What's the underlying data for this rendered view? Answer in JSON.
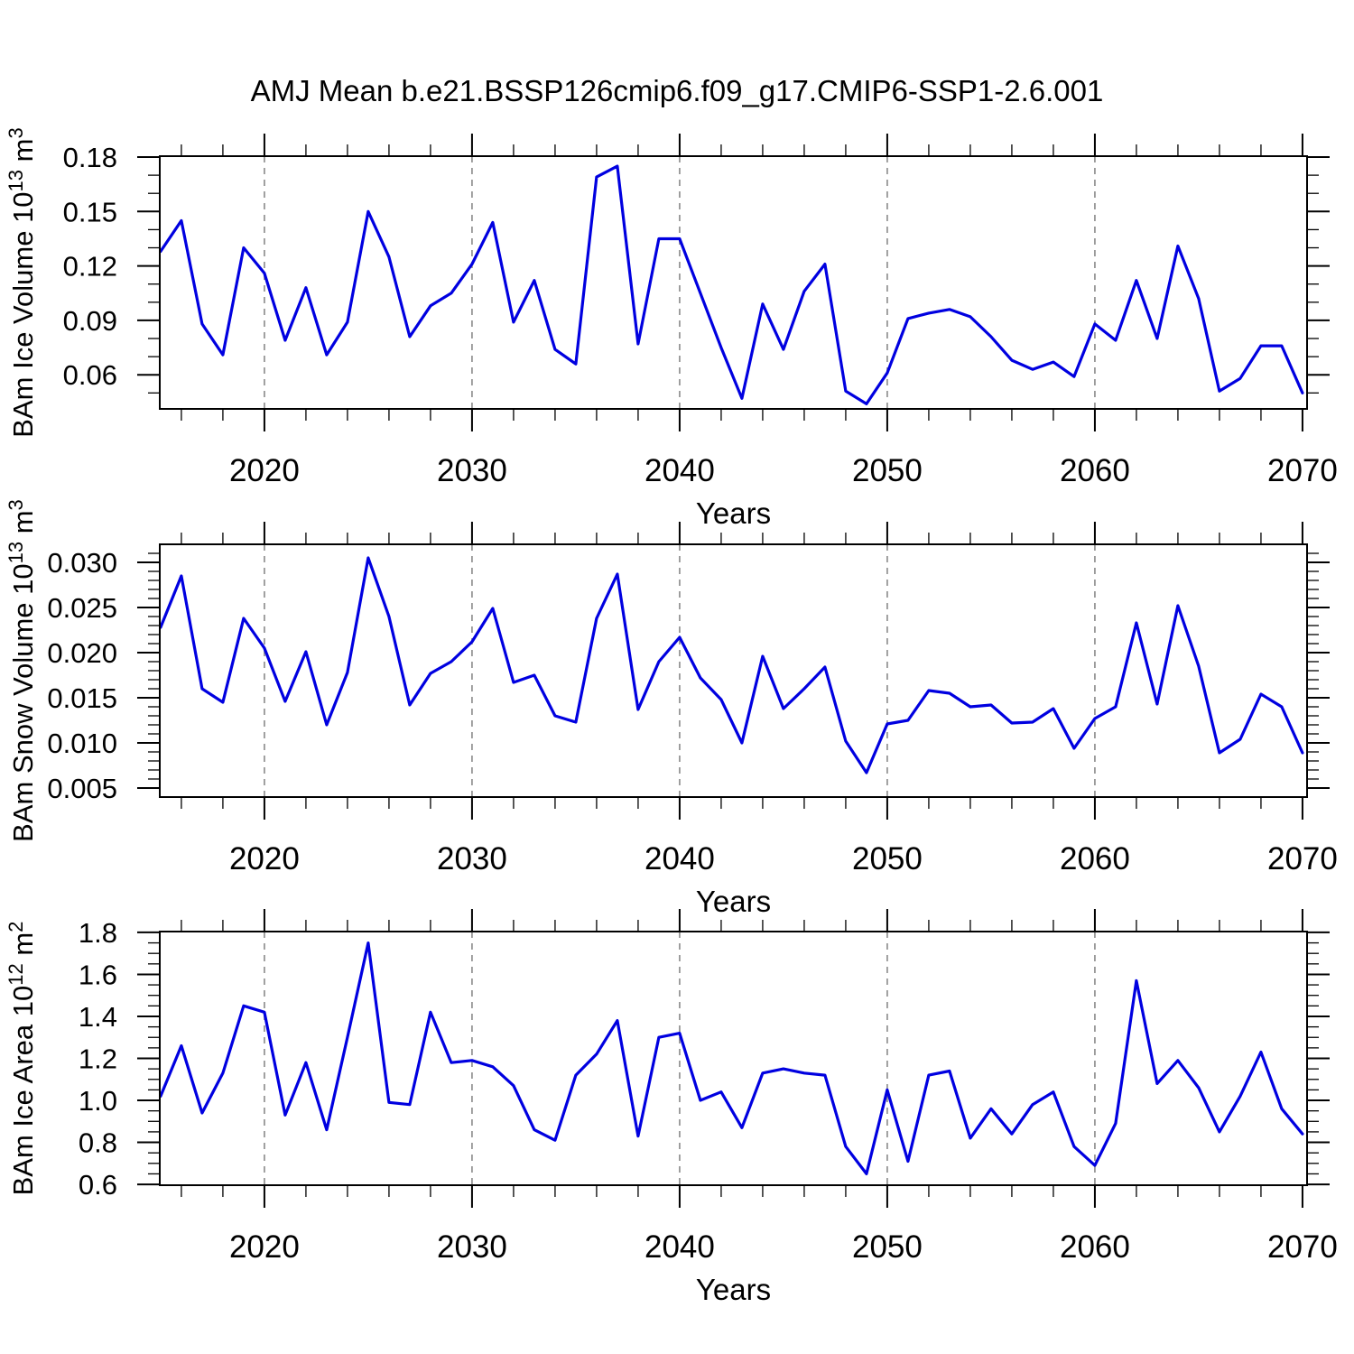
{
  "title": "AMJ Mean b.e21.BSSP126cmip6.f09_g17.CMIP6-SSP1-2.6.001",
  "colors": {
    "line": "#0000e0",
    "gridline": "#8a8a8a",
    "axis": "#000000",
    "background": "#ffffff"
  },
  "x_axis": {
    "label": "Years",
    "range": [
      2014.96,
      2070.22
    ],
    "major_ticks": [
      2020,
      2030,
      2040,
      2050,
      2060,
      2070
    ],
    "minor_step": 2,
    "gridlines": [
      2020,
      2030,
      2040,
      2050,
      2060
    ]
  },
  "chart_data": [
    {
      "type": "line",
      "name": "BAm Ice Volume",
      "ylabel": "BAm Ice Volume 10^13 m^3",
      "ylabel_parts": [
        {
          "text": "BAm Ice Volume 10",
          "super": false
        },
        {
          "text": "13",
          "super": true
        },
        {
          "text": " m",
          "super": false
        },
        {
          "text": "3",
          "super": true
        }
      ],
      "xlabel": "Years",
      "ylim": [
        0.0412,
        0.1805
      ],
      "yticks": [
        0.06,
        0.09,
        0.12,
        0.15,
        0.18
      ],
      "ytick_labels": [
        "0.06",
        "0.09",
        "0.12",
        "0.15",
        "0.18"
      ],
      "y_minor_step": 0.01,
      "grid": true,
      "legend": "none",
      "x": [
        2015,
        2016,
        2017,
        2018,
        2019,
        2020,
        2021,
        2022,
        2023,
        2024,
        2025,
        2026,
        2027,
        2028,
        2029,
        2030,
        2031,
        2032,
        2033,
        2034,
        2035,
        2036,
        2037,
        2038,
        2039,
        2040,
        2041,
        2042,
        2043,
        2044,
        2045,
        2046,
        2047,
        2048,
        2049,
        2050,
        2051,
        2052,
        2053,
        2054,
        2055,
        2056,
        2057,
        2058,
        2059,
        2060,
        2061,
        2062,
        2063,
        2064,
        2065,
        2066,
        2067,
        2068,
        2069,
        2070
      ],
      "values": [
        0.128,
        0.145,
        0.088,
        0.071,
        0.13,
        0.116,
        0.079,
        0.108,
        0.071,
        0.089,
        0.15,
        0.125,
        0.081,
        0.098,
        0.105,
        0.121,
        0.144,
        0.089,
        0.112,
        0.074,
        0.066,
        0.169,
        0.175,
        0.077,
        0.135,
        0.135,
        0.105,
        0.075,
        0.047,
        0.099,
        0.074,
        0.106,
        0.121,
        0.051,
        0.044,
        0.061,
        0.091,
        0.094,
        0.096,
        0.092,
        0.081,
        0.068,
        0.063,
        0.067,
        0.059,
        0.088,
        0.079,
        0.112,
        0.08,
        0.131,
        0.102,
        0.051,
        0.058,
        0.076,
        0.076,
        0.05
      ]
    },
    {
      "type": "line",
      "name": "BAm Snow Volume",
      "ylabel": "BAm Snow Volume 10^13 m^3",
      "ylabel_parts": [
        {
          "text": "BAm Snow Volume 10",
          "super": false
        },
        {
          "text": "13",
          "super": true
        },
        {
          "text": " m",
          "super": false
        },
        {
          "text": "3",
          "super": true
        }
      ],
      "xlabel": "Years",
      "ylim": [
        0.004,
        0.032
      ],
      "yticks": [
        0.005,
        0.01,
        0.015,
        0.02,
        0.025,
        0.03
      ],
      "ytick_labels": [
        "0.005",
        "0.010",
        "0.015",
        "0.020",
        "0.025",
        "0.030"
      ],
      "y_minor_step": 0.001,
      "grid": true,
      "legend": "none",
      "x": [
        2015,
        2016,
        2017,
        2018,
        2019,
        2020,
        2021,
        2022,
        2023,
        2024,
        2025,
        2026,
        2027,
        2028,
        2029,
        2030,
        2031,
        2032,
        2033,
        2034,
        2035,
        2036,
        2037,
        2038,
        2039,
        2040,
        2041,
        2042,
        2043,
        2044,
        2045,
        2046,
        2047,
        2048,
        2049,
        2050,
        2051,
        2052,
        2053,
        2054,
        2055,
        2056,
        2057,
        2058,
        2059,
        2060,
        2061,
        2062,
        2063,
        2064,
        2065,
        2066,
        2067,
        2068,
        2069,
        2070
      ],
      "values": [
        0.0228,
        0.0285,
        0.016,
        0.0145,
        0.0238,
        0.0205,
        0.0146,
        0.0201,
        0.012,
        0.0178,
        0.0305,
        0.024,
        0.0142,
        0.0177,
        0.019,
        0.0212,
        0.0249,
        0.0167,
        0.0175,
        0.013,
        0.0123,
        0.0238,
        0.0287,
        0.0137,
        0.019,
        0.0217,
        0.0172,
        0.0148,
        0.01,
        0.0196,
        0.0138,
        0.016,
        0.0184,
        0.0102,
        0.0067,
        0.0121,
        0.0125,
        0.0158,
        0.0155,
        0.014,
        0.0142,
        0.0122,
        0.0123,
        0.0138,
        0.0094,
        0.0127,
        0.014,
        0.0233,
        0.0143,
        0.0252,
        0.0185,
        0.0089,
        0.0104,
        0.0154,
        0.014,
        0.0089
      ]
    },
    {
      "type": "line",
      "name": "BAm Ice Area",
      "ylabel": "BAm Ice Area 10^12 m^2",
      "ylabel_parts": [
        {
          "text": "BAm Ice Area 10",
          "super": false
        },
        {
          "text": "12",
          "super": true
        },
        {
          "text": " m",
          "super": false
        },
        {
          "text": "2",
          "super": true
        }
      ],
      "xlabel": "Years",
      "ylim": [
        0.596,
        1.804
      ],
      "yticks": [
        0.6,
        0.8,
        1.0,
        1.2,
        1.4,
        1.6,
        1.8
      ],
      "ytick_labels": [
        "0.6",
        "0.8",
        "1.0",
        "1.2",
        "1.4",
        "1.6",
        "1.8"
      ],
      "y_minor_step": 0.05,
      "grid": true,
      "legend": "none",
      "x": [
        2015,
        2016,
        2017,
        2018,
        2019,
        2020,
        2021,
        2022,
        2023,
        2024,
        2025,
        2026,
        2027,
        2028,
        2029,
        2030,
        2031,
        2032,
        2033,
        2034,
        2035,
        2036,
        2037,
        2038,
        2039,
        2040,
        2041,
        2042,
        2043,
        2044,
        2045,
        2046,
        2047,
        2048,
        2049,
        2050,
        2051,
        2052,
        2053,
        2054,
        2055,
        2056,
        2057,
        2058,
        2059,
        2060,
        2061,
        2062,
        2063,
        2064,
        2065,
        2066,
        2067,
        2068,
        2069,
        2070
      ],
      "values": [
        1.02,
        1.26,
        0.94,
        1.13,
        1.45,
        1.42,
        0.93,
        1.18,
        0.86,
        1.3,
        1.75,
        0.99,
        0.98,
        1.42,
        1.18,
        1.19,
        1.16,
        1.07,
        0.86,
        0.81,
        1.12,
        1.22,
        1.38,
        0.83,
        1.3,
        1.32,
        1.0,
        1.04,
        0.87,
        1.13,
        1.15,
        1.13,
        1.12,
        0.78,
        0.65,
        1.05,
        0.71,
        1.12,
        1.14,
        0.82,
        0.96,
        0.84,
        0.98,
        1.04,
        0.78,
        0.69,
        0.89,
        1.57,
        1.08,
        1.19,
        1.06,
        0.85,
        1.02,
        1.23,
        0.96,
        0.84
      ]
    }
  ]
}
